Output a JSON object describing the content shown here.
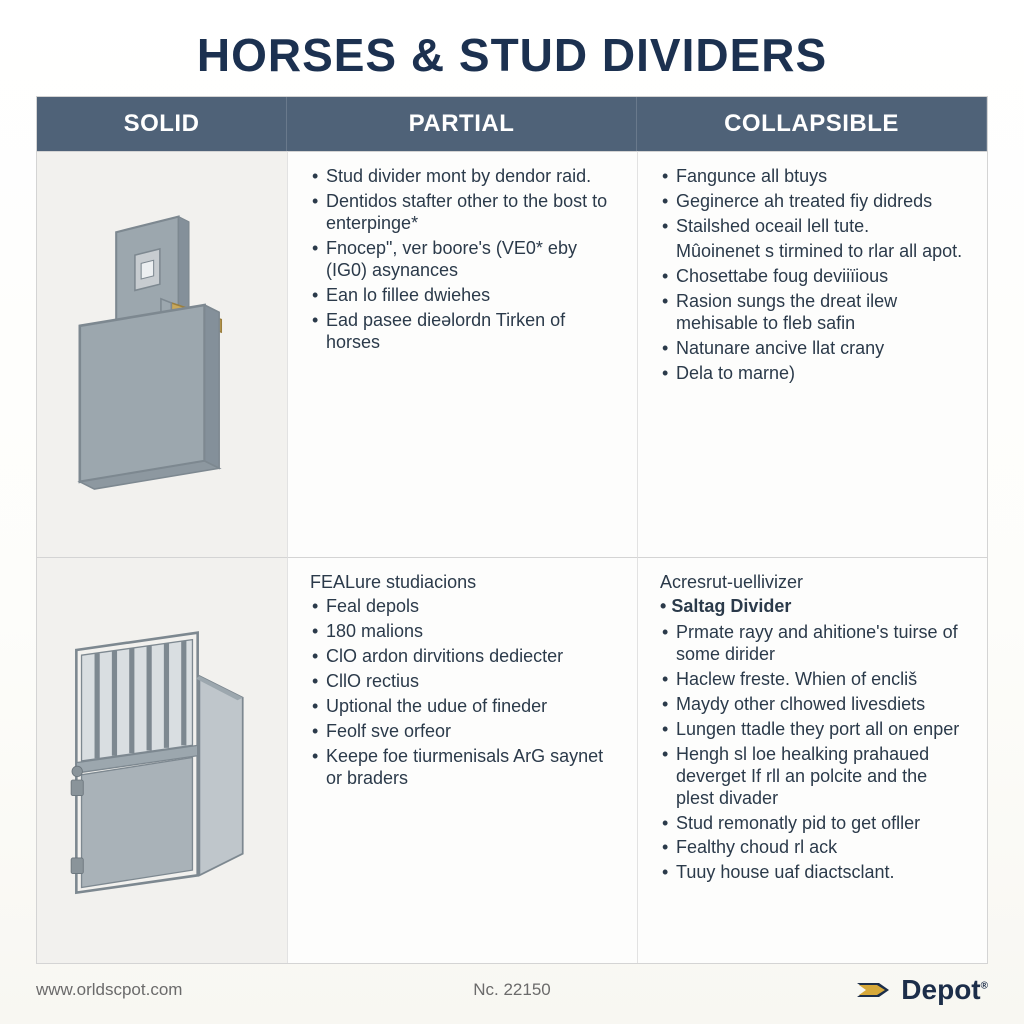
{
  "title": "HORSES & STUD DIVIDERS",
  "title_color": "#1c3150",
  "title_fontsize": 46,
  "header_bg": "#4f6278",
  "header_fg": "#ffffff",
  "header_fontsize": 24,
  "body_text_color": "#2b3a4a",
  "body_fontsize": 18,
  "body_lineheight": 1.22,
  "illus_bg": "#f2f1ee",
  "columns": [
    {
      "key": "solid",
      "label": "SOLID"
    },
    {
      "key": "partial",
      "label": "PARTIAL"
    },
    {
      "key": "collapsible",
      "label": "COLLAPSIBLE"
    }
  ],
  "row1": {
    "partial": [
      "Stud divider mont by dendor raid.",
      "Dentidos stafter other to the bost to enterpinge*",
      "Fnocep\", ver boore's (VE0* eby (IG0) asynances",
      "Ean lo fillee dwiehes",
      "Ead pasee dieəlordn Tirken of horses"
    ],
    "collapsible": [
      "Fangunce all btuys",
      "Geginerce ah treated fiy didreds",
      "Stailshed oceail lell tute.",
      "__CONT__Mûoinenet s tirmined to rlar all apot.",
      "Chosettabe foug deviiïious",
      "Rasion sungs the dreat ilew mehisable to fleb safin",
      "Natunare ancive llat crany",
      "Dela to marne)"
    ]
  },
  "row2": {
    "partial_heading": "FEALure studiacions",
    "partial": [
      "Feal depols",
      "180 malions",
      "ClO ardon dirvitions dediecter",
      "CllO rectius",
      "Uptional the udue of fineder",
      "Feolf sve orfeor",
      "Keepe foe tiurmenisals ArG saynet or braders"
    ],
    "collapsible_heading": "Acresrut-uellivizer",
    "collapsible_sub": "Saltag Divider",
    "collapsible": [
      "Prmate rayy and ahitione's tuirse of some dirider",
      "Haclew freste. Whien of encliš",
      "Maydy other clhowed livesdiets",
      "Lungen ttadle they port all on enper",
      "Hengh sl loe healking prahaued deverget If rll an polcite and the plest divader",
      "Stud remonatly pid to get ofller",
      "Fealthy choud rl ack",
      "Tuuy house uaf diactsclant."
    ]
  },
  "illustrations": {
    "solid_panel": {
      "panel_fill": "#9ca7ae",
      "panel_stroke": "#7d8890",
      "bar_fill": "#c9a85a"
    },
    "gate": {
      "panel_fill": "#a9b2b8",
      "panel_stroke": "#7d8890",
      "hinge_fill": "#8a949a"
    }
  },
  "footer": {
    "url": "www.orldscpot.com",
    "code": "Nc. 22150",
    "brand": "Depot",
    "brand_color": "#1c2e4a",
    "brand_accent": "#d7a93a"
  }
}
